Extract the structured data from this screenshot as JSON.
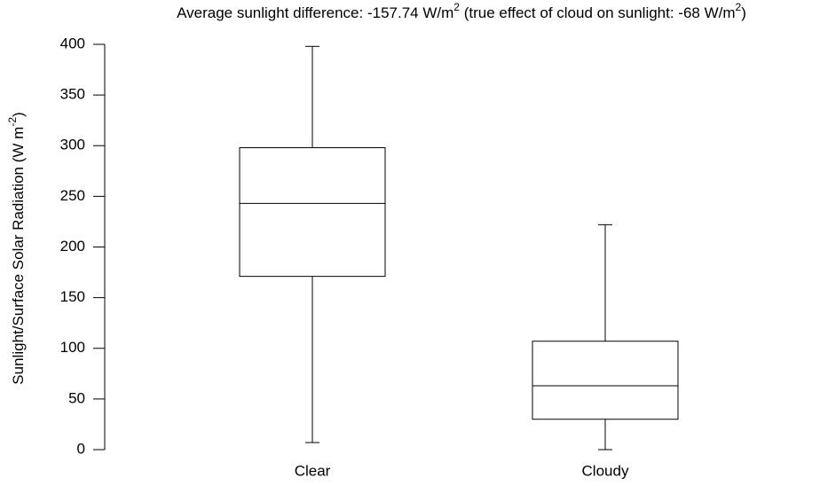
{
  "chart_data": {
    "type": "box",
    "title": [
      "Average sunlight difference: -157.74 W/m",
      "2",
      " (true effect of cloud on sunlight: -68 W/m",
      "2",
      ")"
    ],
    "ylabel": [
      "Sunlight/Surface Solar Radiation (W m",
      "-2",
      ")"
    ],
    "categories": [
      "Clear",
      "Cloudy"
    ],
    "boxes": [
      {
        "whislo": 7,
        "q1": 171,
        "med": 243,
        "q3": 298,
        "whishi": 398
      },
      {
        "whislo": 0,
        "q1": 30,
        "med": 63,
        "q3": 107,
        "whishi": 222
      }
    ],
    "color": "#000000",
    "ylim": [
      0,
      400
    ],
    "yticks": [
      0,
      50,
      100,
      150,
      200,
      250,
      300,
      350,
      400
    ]
  }
}
